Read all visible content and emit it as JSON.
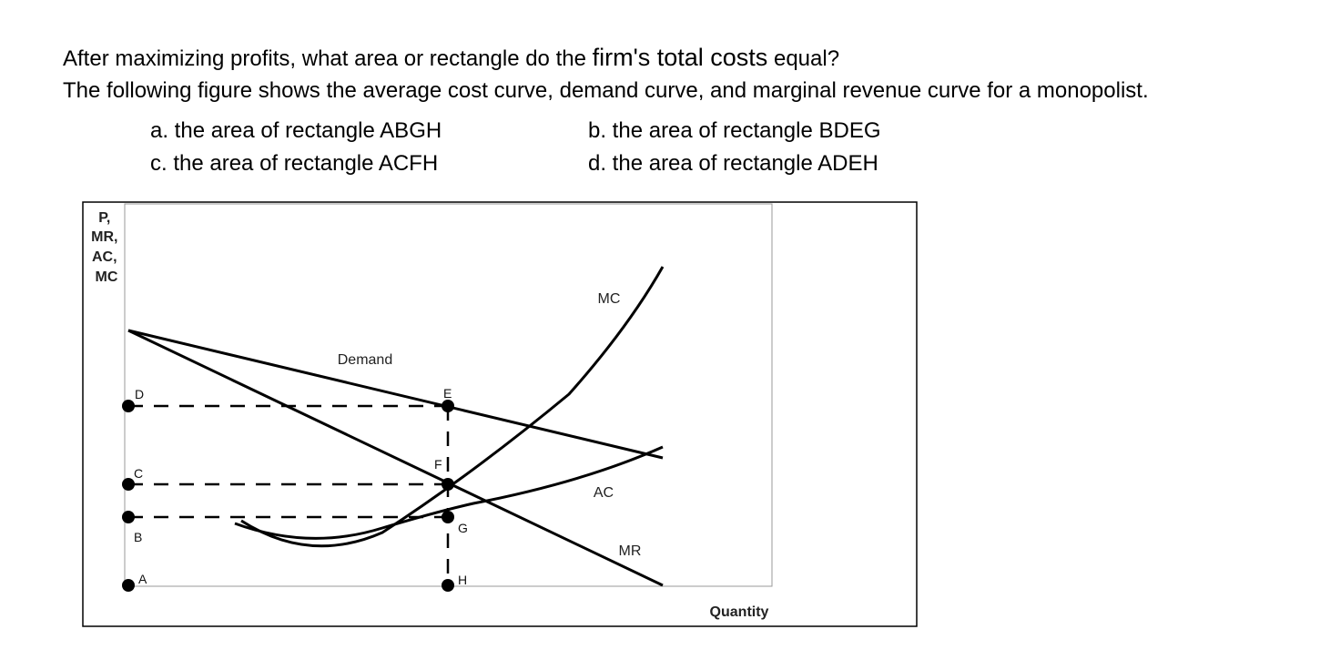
{
  "question": {
    "line1_a": "After maximizing profits, what area or rectangle do the ",
    "line1_b": "firm's total costs",
    "line1_c": " equal?",
    "line2": "The following figure shows the average cost curve, demand curve, and marginal revenue curve for a monopolist."
  },
  "options": {
    "a": "a. the area of rectangle ABGH",
    "b": "b. the area of rectangle BDEG",
    "c": "c. the area of rectangle ACFH",
    "d": "d. the area of rectangle ADEH"
  },
  "figure": {
    "y_axis_label": [
      "P,",
      "MR,",
      "AC,",
      "MC"
    ],
    "x_axis_label": "Quantity",
    "curves": {
      "demand": "Demand",
      "mc": "MC",
      "ac": "AC",
      "mr": "MR"
    },
    "points": {
      "D": "D",
      "C": "C",
      "B": "B",
      "A": "A",
      "E": "E",
      "F": "F",
      "G": "G",
      "H": "H"
    }
  }
}
